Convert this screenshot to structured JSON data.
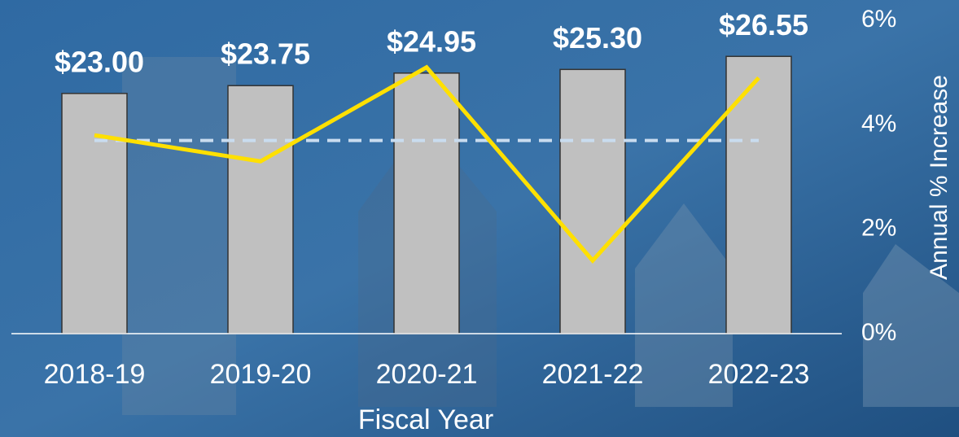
{
  "chart_data": {
    "type": "combo",
    "categories": [
      "2018-19",
      "2019-20",
      "2020-21",
      "2021-22",
      "2022-23"
    ],
    "x_label": "Fiscal Year",
    "y2_label": "Annual % Increase",
    "ylim": [
      0,
      30
    ],
    "y2lim": [
      0,
      6
    ],
    "y2ticks": [
      {
        "value": 0,
        "label": "0%"
      },
      {
        "value": 2,
        "label": "2%"
      },
      {
        "value": 4,
        "label": "4%"
      },
      {
        "value": 6,
        "label": "6%"
      }
    ],
    "series": [
      {
        "type": "bar",
        "color": "#c0c0c0",
        "values": [
          23.0,
          23.75,
          24.95,
          25.3,
          26.55
        ],
        "value_labels": [
          "$23.00",
          "$23.75",
          "$24.95",
          "$25.30",
          "$26.55"
        ]
      },
      {
        "type": "line",
        "axis": "y2",
        "color": "#ffe000",
        "values": [
          3.8,
          3.3,
          5.1,
          1.4,
          4.9
        ]
      }
    ],
    "reference_line": {
      "axis": "y2",
      "value": 3.7,
      "color": "#c9dcef",
      "dashed": true
    }
  }
}
